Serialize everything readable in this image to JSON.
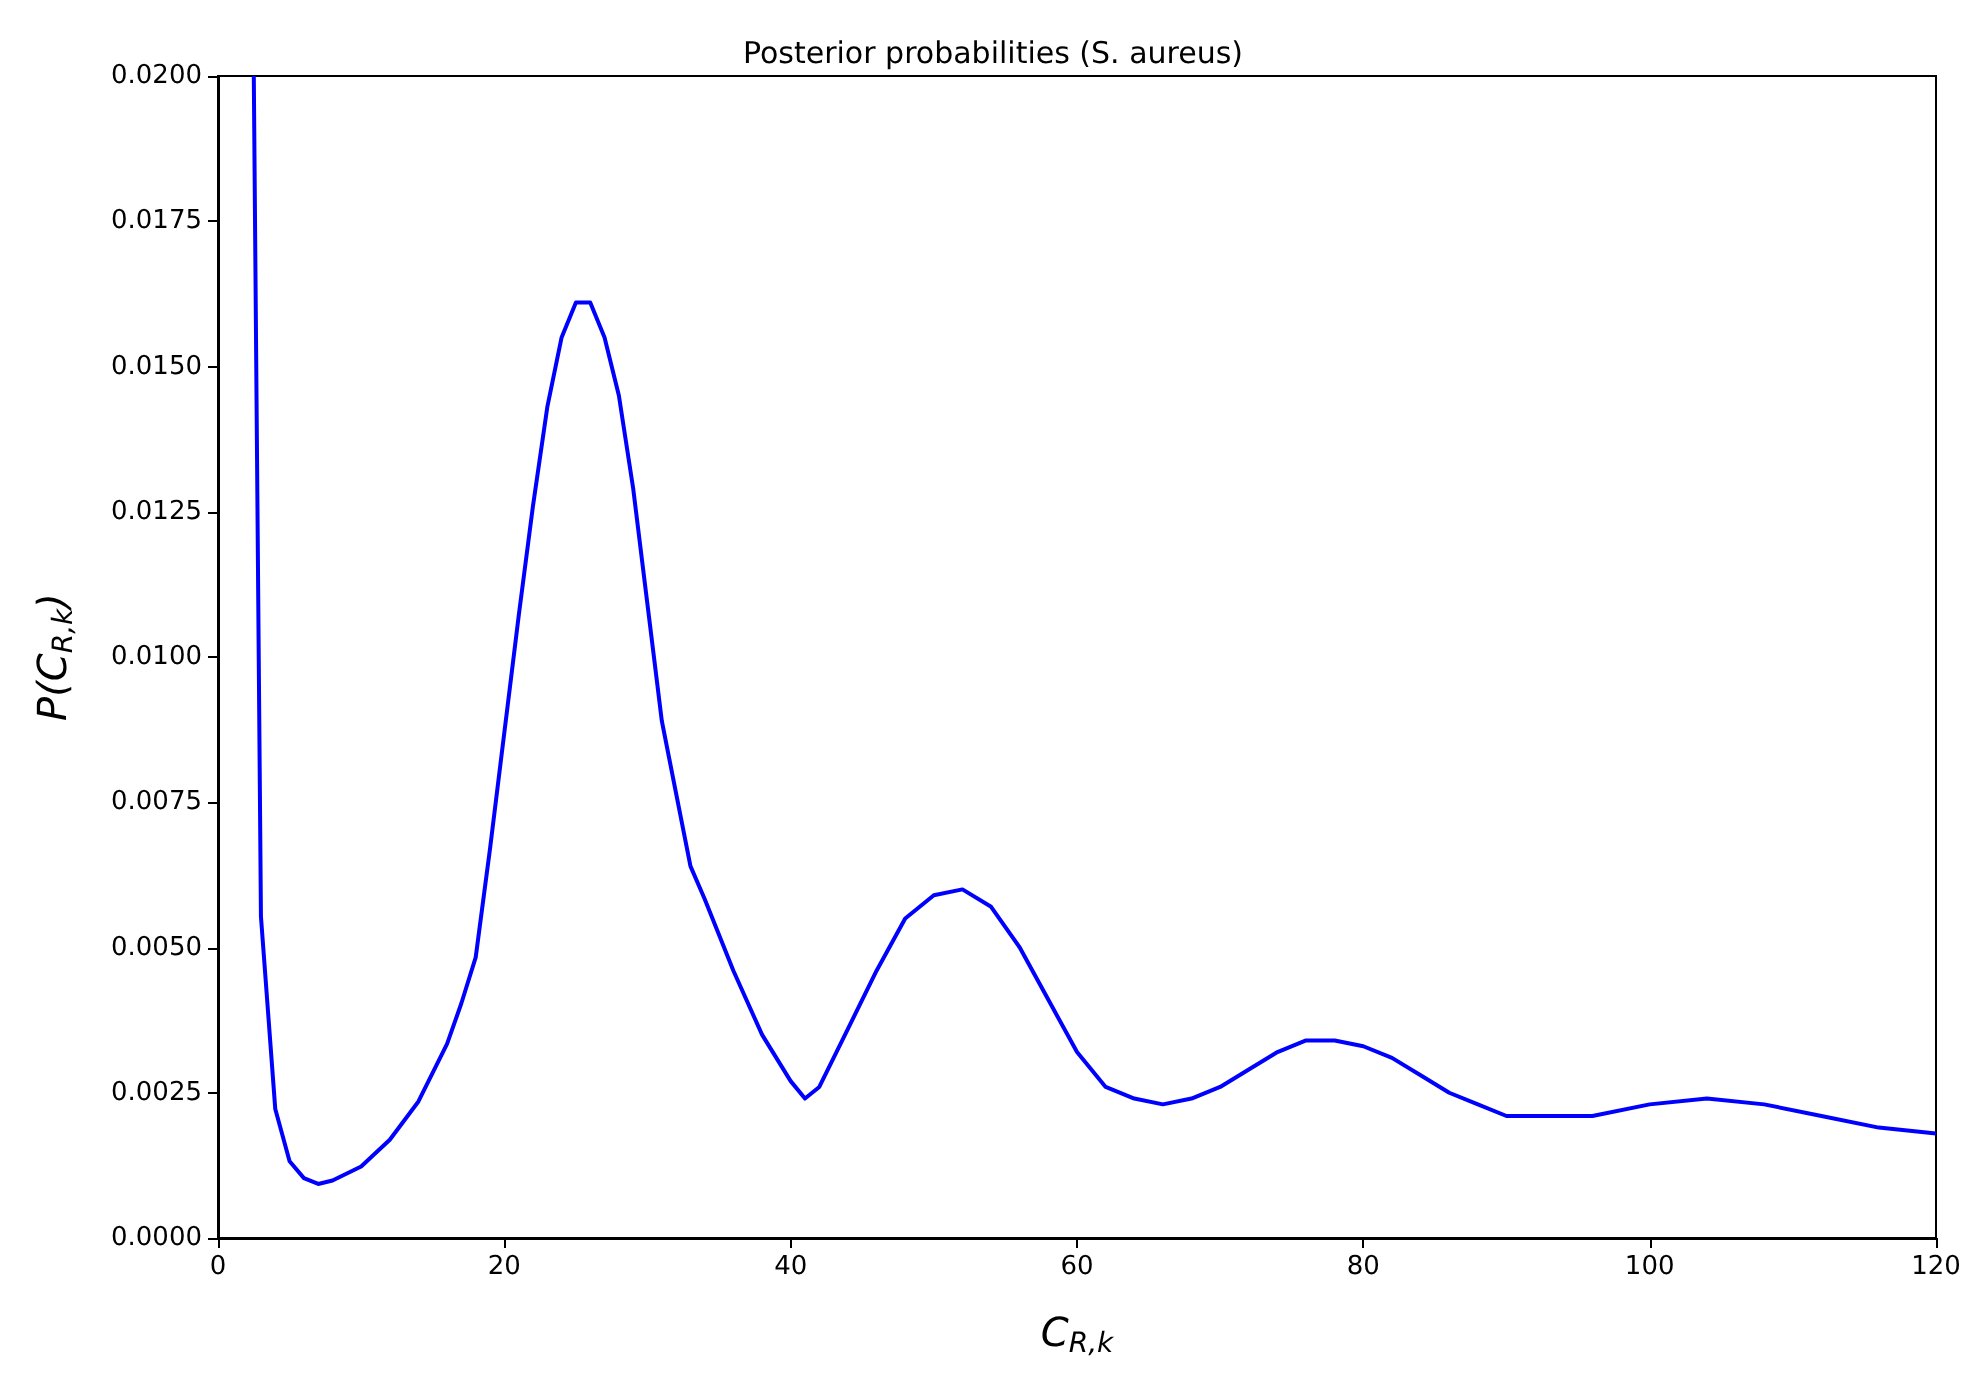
{
  "chart_data": {
    "type": "line",
    "title": "Posterior probabilities (S. aureus)",
    "xlabel": "C$_{R,k}$",
    "ylabel": "P(C$_{R,k}$)",
    "x": [
      2.5,
      3,
      4,
      5,
      6,
      7,
      8,
      10,
      12,
      14,
      16,
      17,
      18,
      19,
      20,
      21,
      22,
      23,
      24,
      25,
      26,
      27,
      28,
      29,
      30,
      31,
      32,
      33,
      34,
      36,
      38,
      40,
      41,
      42,
      44,
      46,
      48,
      50,
      52,
      54,
      56,
      58,
      60,
      62,
      64,
      66,
      68,
      70,
      72,
      74,
      76,
      78,
      80,
      82,
      84,
      86,
      88,
      90,
      93,
      96,
      100,
      104,
      108,
      112,
      116,
      120
    ],
    "series": [
      {
        "color": "#0000ff",
        "values": [
          0.02,
          0.00553,
          0.00222,
          0.00132,
          0.00103,
          0.00093,
          0.00099,
          0.00123,
          0.00169,
          0.00235,
          0.00334,
          0.00404,
          0.00483,
          0.0067,
          0.0087,
          0.0107,
          0.0126,
          0.0143,
          0.0155,
          0.0161,
          0.0161,
          0.0155,
          0.0145,
          0.0129,
          0.0109,
          0.0089,
          0.00765,
          0.0064,
          0.00583,
          0.0046,
          0.0035,
          0.0027,
          0.0024,
          0.0026,
          0.0036,
          0.0046,
          0.0055,
          0.0059,
          0.006,
          0.0057,
          0.005,
          0.0041,
          0.0032,
          0.0026,
          0.0024,
          0.0023,
          0.0024,
          0.0026,
          0.0029,
          0.0032,
          0.0034,
          0.0034,
          0.0033,
          0.0031,
          0.0028,
          0.0025,
          0.0023,
          0.0021,
          0.0021,
          0.0021,
          0.0023,
          0.0024,
          0.0023,
          0.0021,
          0.0019,
          0.0018
        ]
      }
    ],
    "xlim": [
      0,
      120
    ],
    "xticks": [
      0,
      20,
      40,
      60,
      80,
      100,
      120
    ],
    "ylim": [
      0,
      0.02
    ],
    "yticks": [
      {
        "value": 0,
        "label": "0.0000"
      },
      {
        "value": 0.0025,
        "label": "0.0025"
      },
      {
        "value": 0.005,
        "label": "0.0050"
      },
      {
        "value": 0.0075,
        "label": "0.0075"
      },
      {
        "value": 0.01,
        "label": "0.0100"
      },
      {
        "value": 0.0125,
        "label": "0.0125"
      },
      {
        "value": 0.015,
        "label": "0.0150"
      },
      {
        "value": 0.0175,
        "label": "0.0175"
      },
      {
        "value": 0.02,
        "label": "0.0200"
      }
    ],
    "marker": "none",
    "line_style": "solid"
  }
}
